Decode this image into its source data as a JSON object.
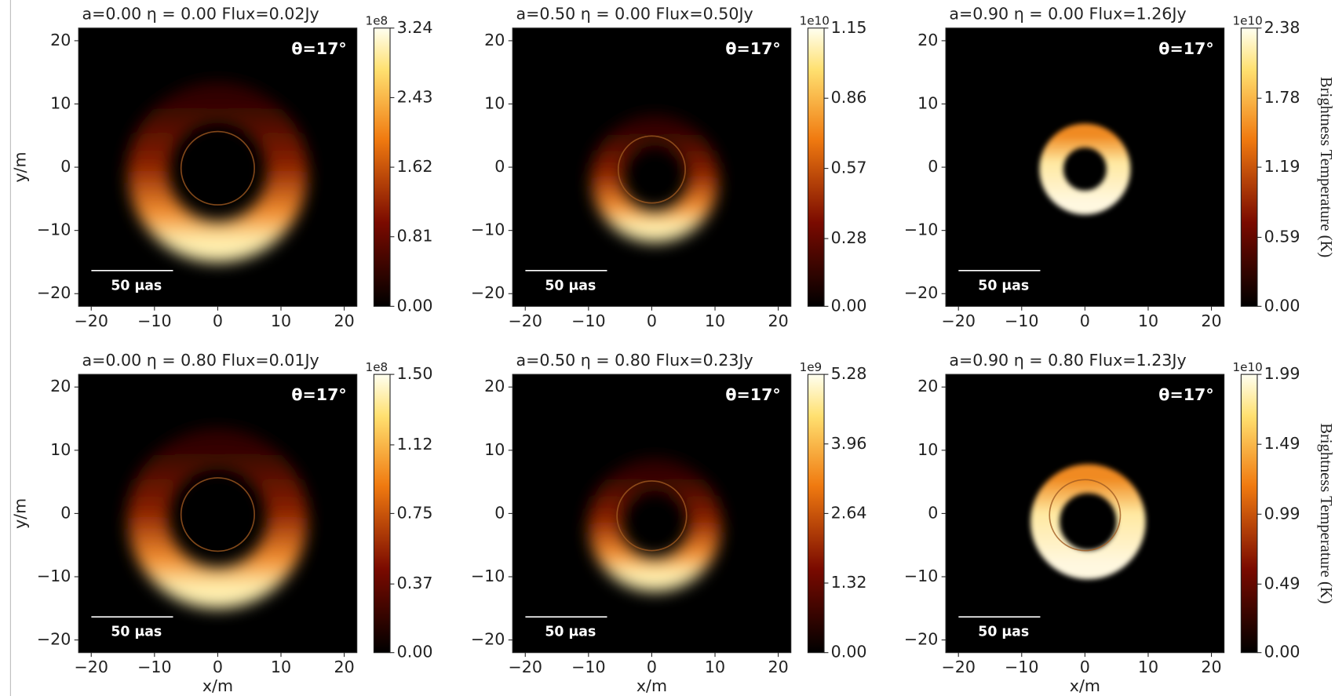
{
  "chart_data": [
    {
      "type": "image",
      "title": "a=0.00  η = 0.00  Flux=0.02Jy",
      "annotation": "θ=17°",
      "scale_bar_label": "50 μas",
      "ylabel": "y/m",
      "xlim": [
        -22,
        22
      ],
      "ylim": [
        -22,
        22
      ],
      "xticks": [
        {
          "value": -20,
          "label": "−20"
        },
        {
          "value": -10,
          "label": "−10"
        },
        0,
        10,
        20
      ],
      "yticks": [
        {
          "value": -20,
          "label": "−20"
        },
        {
          "value": -10,
          "label": "−10"
        },
        0,
        10,
        20
      ],
      "colorbar": {
        "offset_label": "1e8",
        "lim": [
          0,
          3.24
        ],
        "ticks": [
          {
            "value": 0,
            "label": "0.00"
          },
          0.81,
          1.62,
          2.43,
          3.24
        ]
      }
    },
    {
      "type": "image",
      "title": "a=0.50  η = 0.00  Flux=0.50Jy",
      "annotation": "θ=17°",
      "scale_bar_label": "50 μas",
      "xlim": [
        -22,
        22
      ],
      "ylim": [
        -22,
        22
      ],
      "xticks": [
        {
          "value": -20,
          "label": "−20"
        },
        {
          "value": -10,
          "label": "−10"
        },
        0,
        10,
        20
      ],
      "yticks": [
        {
          "value": -20,
          "label": "−20"
        },
        {
          "value": -10,
          "label": "−10"
        },
        0,
        10,
        20
      ],
      "colorbar": {
        "offset_label": "1e10",
        "lim": [
          0,
          1.15
        ],
        "ticks": [
          {
            "value": 0,
            "label": "0.00"
          },
          0.28,
          0.57,
          0.86,
          1.15
        ]
      }
    },
    {
      "type": "image",
      "title": "a=0.90  η = 0.00  Flux=1.26Jy",
      "annotation": "θ=17°",
      "scale_bar_label": "50 μas",
      "xlim": [
        -22,
        22
      ],
      "ylim": [
        -22,
        22
      ],
      "xticks": [
        {
          "value": -20,
          "label": "−20"
        },
        {
          "value": -10,
          "label": "−10"
        },
        0,
        10,
        20
      ],
      "yticks": [
        {
          "value": -20,
          "label": "−20"
        },
        {
          "value": -10,
          "label": "−10"
        },
        0,
        10,
        20
      ],
      "colorbar": {
        "offset_label": "1e10",
        "lim": [
          0,
          2.38
        ],
        "ticks": [
          {
            "value": 0,
            "label": "0.00"
          },
          0.59,
          1.19,
          1.78,
          2.38
        ],
        "label": "Brightness Temperature (K)"
      }
    },
    {
      "type": "image",
      "title": "a=0.00  η = 0.80  Flux=0.01Jy",
      "annotation": "θ=17°",
      "scale_bar_label": "50 μas",
      "xlabel": "x/m",
      "ylabel": "y/m",
      "xlim": [
        -22,
        22
      ],
      "ylim": [
        -22,
        22
      ],
      "xticks": [
        {
          "value": -20,
          "label": "−20"
        },
        {
          "value": -10,
          "label": "−10"
        },
        0,
        10,
        20
      ],
      "yticks": [
        {
          "value": -20,
          "label": "−20"
        },
        {
          "value": -10,
          "label": "−10"
        },
        0,
        10,
        20
      ],
      "colorbar": {
        "offset_label": "1e8",
        "lim": [
          0,
          1.5
        ],
        "ticks": [
          {
            "value": 0,
            "label": "0.00"
          },
          0.37,
          0.75,
          1.12,
          {
            "value": 1.5,
            "label": "1.50"
          }
        ]
      }
    },
    {
      "type": "image",
      "title": "a=0.50  η = 0.80  Flux=0.23Jy",
      "annotation": "θ=17°",
      "scale_bar_label": "50 μas",
      "xlabel": "x/m",
      "xlim": [
        -22,
        22
      ],
      "ylim": [
        -22,
        22
      ],
      "xticks": [
        {
          "value": -20,
          "label": "−20"
        },
        {
          "value": -10,
          "label": "−10"
        },
        0,
        10,
        20
      ],
      "yticks": [
        {
          "value": -20,
          "label": "−20"
        },
        {
          "value": -10,
          "label": "−10"
        },
        0,
        10,
        20
      ],
      "colorbar": {
        "offset_label": "1e9",
        "lim": [
          0,
          5.28
        ],
        "ticks": [
          {
            "value": 0,
            "label": "0.00"
          },
          1.32,
          2.64,
          3.96,
          5.28
        ]
      }
    },
    {
      "type": "image",
      "title": "a=0.90  η = 0.80  Flux=1.23Jy",
      "annotation": "θ=17°",
      "scale_bar_label": "50 μas",
      "xlabel": "x/m",
      "xlim": [
        -22,
        22
      ],
      "ylim": [
        -22,
        22
      ],
      "xticks": [
        {
          "value": -20,
          "label": "−20"
        },
        {
          "value": -10,
          "label": "−10"
        },
        0,
        10,
        20
      ],
      "yticks": [
        {
          "value": -20,
          "label": "−20"
        },
        {
          "value": -10,
          "label": "−10"
        },
        0,
        10,
        20
      ],
      "colorbar": {
        "offset_label": "1e10",
        "lim": [
          0,
          1.99
        ],
        "ticks": [
          {
            "value": 0,
            "label": "0.00"
          },
          0.49,
          0.99,
          1.49,
          1.99
        ],
        "label": "Brightness Temperature (K)"
      }
    }
  ]
}
